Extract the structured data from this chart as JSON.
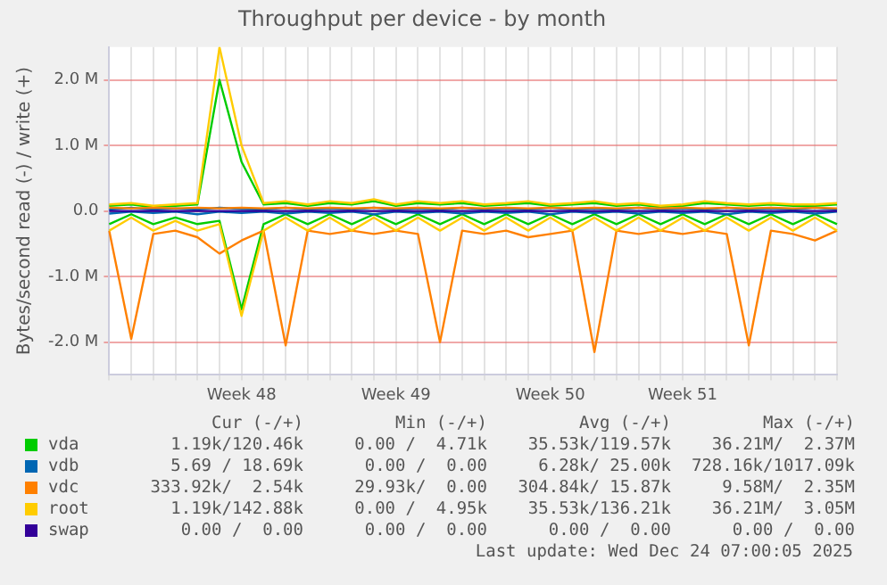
{
  "chart_data": {
    "type": "line",
    "title": "Throughput per device - by month",
    "ylabel": "Bytes/second read (-) / write (+)",
    "categories": [
      null,
      null,
      null,
      null,
      null,
      null,
      "Week 48",
      null,
      null,
      null,
      null,
      null,
      null,
      "Week 49",
      null,
      null,
      null,
      null,
      null,
      null,
      "Week 50",
      null,
      null,
      null,
      null,
      null,
      "Week 51",
      null,
      null,
      null,
      null,
      null,
      null,
      null
    ],
    "ylim": [
      -2.5,
      2.5
    ],
    "yticks": [
      {
        "value": -2,
        "label": "-2.0 M"
      },
      {
        "value": -1,
        "label": "-1.0 M"
      },
      {
        "value": 0,
        "label": "0.0"
      },
      {
        "value": 1,
        "label": "1.0 M"
      },
      {
        "value": 2,
        "label": "2.0 M"
      }
    ],
    "grid": true,
    "legend": "bottom",
    "marker": "none",
    "line_style": "solid",
    "series": [
      {
        "name": "vda",
        "color": "#00cc00",
        "values": [
          0.08,
          0.1,
          0.06,
          0.08,
          0.1,
          2.0,
          0.75,
          0.1,
          0.12,
          0.08,
          0.12,
          0.1,
          0.15,
          0.08,
          0.12,
          0.1,
          0.12,
          0.08,
          0.1,
          0.12,
          0.08,
          0.1,
          0.12,
          0.08,
          0.1,
          0.06,
          0.08,
          0.12,
          0.1,
          0.08,
          0.1,
          0.08,
          0.08,
          0.1
        ]
      },
      {
        "color": "#00cc00",
        "values": [
          -0.2,
          -0.05,
          -0.2,
          -0.1,
          -0.2,
          -0.15,
          -1.5,
          -0.2,
          -0.05,
          -0.2,
          -0.05,
          -0.2,
          -0.05,
          -0.2,
          -0.05,
          -0.2,
          -0.05,
          -0.2,
          -0.05,
          -0.2,
          -0.05,
          -0.2,
          -0.05,
          -0.2,
          -0.05,
          -0.2,
          -0.05,
          -0.2,
          -0.05,
          -0.2,
          -0.05,
          -0.2,
          -0.05,
          -0.2
        ]
      },
      {
        "name": "vdb",
        "color": "#0066b3",
        "values": [
          0.02,
          0.05,
          0.02,
          0.04,
          0.02,
          0.05,
          0.03,
          0.02,
          0.05,
          0.02,
          0.04,
          0.02,
          0.05,
          0.02,
          0.04,
          0.02,
          0.05,
          0.02,
          0.04,
          0.02,
          0.05,
          0.02,
          0.04,
          0.02,
          0.05,
          0.02,
          0.04,
          0.02,
          0.05,
          0.02,
          0.04,
          0.02,
          0.05,
          0.02
        ]
      },
      {
        "color": "#0066b3",
        "values": [
          -0.04,
          -0.01,
          -0.03,
          -0.01,
          -0.05,
          -0.01,
          -0.03,
          -0.01,
          -0.04,
          -0.01,
          -0.03,
          -0.01,
          -0.05,
          -0.01,
          -0.03,
          -0.01,
          -0.04,
          -0.01,
          -0.03,
          -0.01,
          -0.05,
          -0.01,
          -0.03,
          -0.01,
          -0.04,
          -0.01,
          -0.03,
          -0.01,
          -0.05,
          -0.01,
          -0.03,
          -0.01,
          -0.04,
          -0.01
        ]
      },
      {
        "name": "vdc",
        "color": "#ff8000",
        "values": [
          0.05,
          0.04,
          0.05,
          0.04,
          0.05,
          0.04,
          0.05,
          0.04,
          0.05,
          0.04,
          0.05,
          0.04,
          0.05,
          0.04,
          0.05,
          0.04,
          0.05,
          0.04,
          0.05,
          0.04,
          0.05,
          0.04,
          0.05,
          0.04,
          0.05,
          0.04,
          0.05,
          0.04,
          0.05,
          0.04,
          0.05,
          0.04,
          0.05,
          0.04
        ]
      },
      {
        "color": "#ff8000",
        "values": [
          -0.3,
          -1.95,
          -0.35,
          -0.3,
          -0.4,
          -0.65,
          -0.45,
          -0.3,
          -2.05,
          -0.3,
          -0.35,
          -0.3,
          -0.35,
          -0.3,
          -0.35,
          -2.0,
          -0.3,
          -0.35,
          -0.3,
          -0.4,
          -0.35,
          -0.3,
          -2.15,
          -0.3,
          -0.35,
          -0.3,
          -0.35,
          -0.3,
          -0.35,
          -2.05,
          -0.3,
          -0.35,
          -0.45,
          -0.3
        ]
      },
      {
        "name": "root",
        "color": "#ffcc00",
        "values": [
          0.1,
          0.12,
          0.08,
          0.1,
          0.12,
          2.5,
          1.0,
          0.12,
          0.15,
          0.1,
          0.15,
          0.12,
          0.18,
          0.1,
          0.15,
          0.12,
          0.15,
          0.1,
          0.12,
          0.15,
          0.1,
          0.12,
          0.15,
          0.1,
          0.12,
          0.08,
          0.1,
          0.15,
          0.12,
          0.1,
          0.12,
          0.1,
          0.1,
          0.12
        ]
      },
      {
        "color": "#ffcc00",
        "values": [
          -0.3,
          -0.1,
          -0.3,
          -0.15,
          -0.3,
          -0.2,
          -1.6,
          -0.3,
          -0.1,
          -0.3,
          -0.1,
          -0.3,
          -0.1,
          -0.3,
          -0.1,
          -0.3,
          -0.1,
          -0.3,
          -0.1,
          -0.3,
          -0.1,
          -0.3,
          -0.1,
          -0.3,
          -0.1,
          -0.3,
          -0.1,
          -0.3,
          -0.1,
          -0.3,
          -0.1,
          -0.3,
          -0.1,
          -0.3
        ]
      },
      {
        "name": "swap",
        "color": "#330099",
        "values": [
          0,
          0,
          0,
          0,
          0,
          0,
          0,
          0,
          0,
          0,
          0,
          0,
          0,
          0,
          0,
          0,
          0,
          0,
          0,
          0,
          0,
          0,
          0,
          0,
          0,
          0,
          0,
          0,
          0,
          0,
          0,
          0,
          0,
          0
        ]
      }
    ],
    "annotations": [
      "Cur (-/+)",
      "Min (-/+)",
      "Avg (-/+)",
      "Max (-/+)",
      "1.19k/120.46k",
      "0.00 /  4.71k",
      "35.53k/119.57k",
      "36.21M/  2.37M",
      "5.69 / 18.69k",
      "0.00 /  0.00",
      "6.28k/ 25.00k",
      "728.16k/1017.09k",
      "333.92k/  2.54k",
      "29.93k/  0.00",
      "304.84k/ 15.87k",
      "9.58M/  2.35M",
      "1.19k/142.88k",
      "0.00 /  4.95k",
      "35.53k/136.21k",
      "36.21M/  3.05M",
      "0.00 /  0.00",
      "0.00 /  0.00",
      "0.00 /  0.00",
      "0.00 /  0.00",
      "Last update: Wed Dec 24 07:00:05 2025"
    ]
  }
}
